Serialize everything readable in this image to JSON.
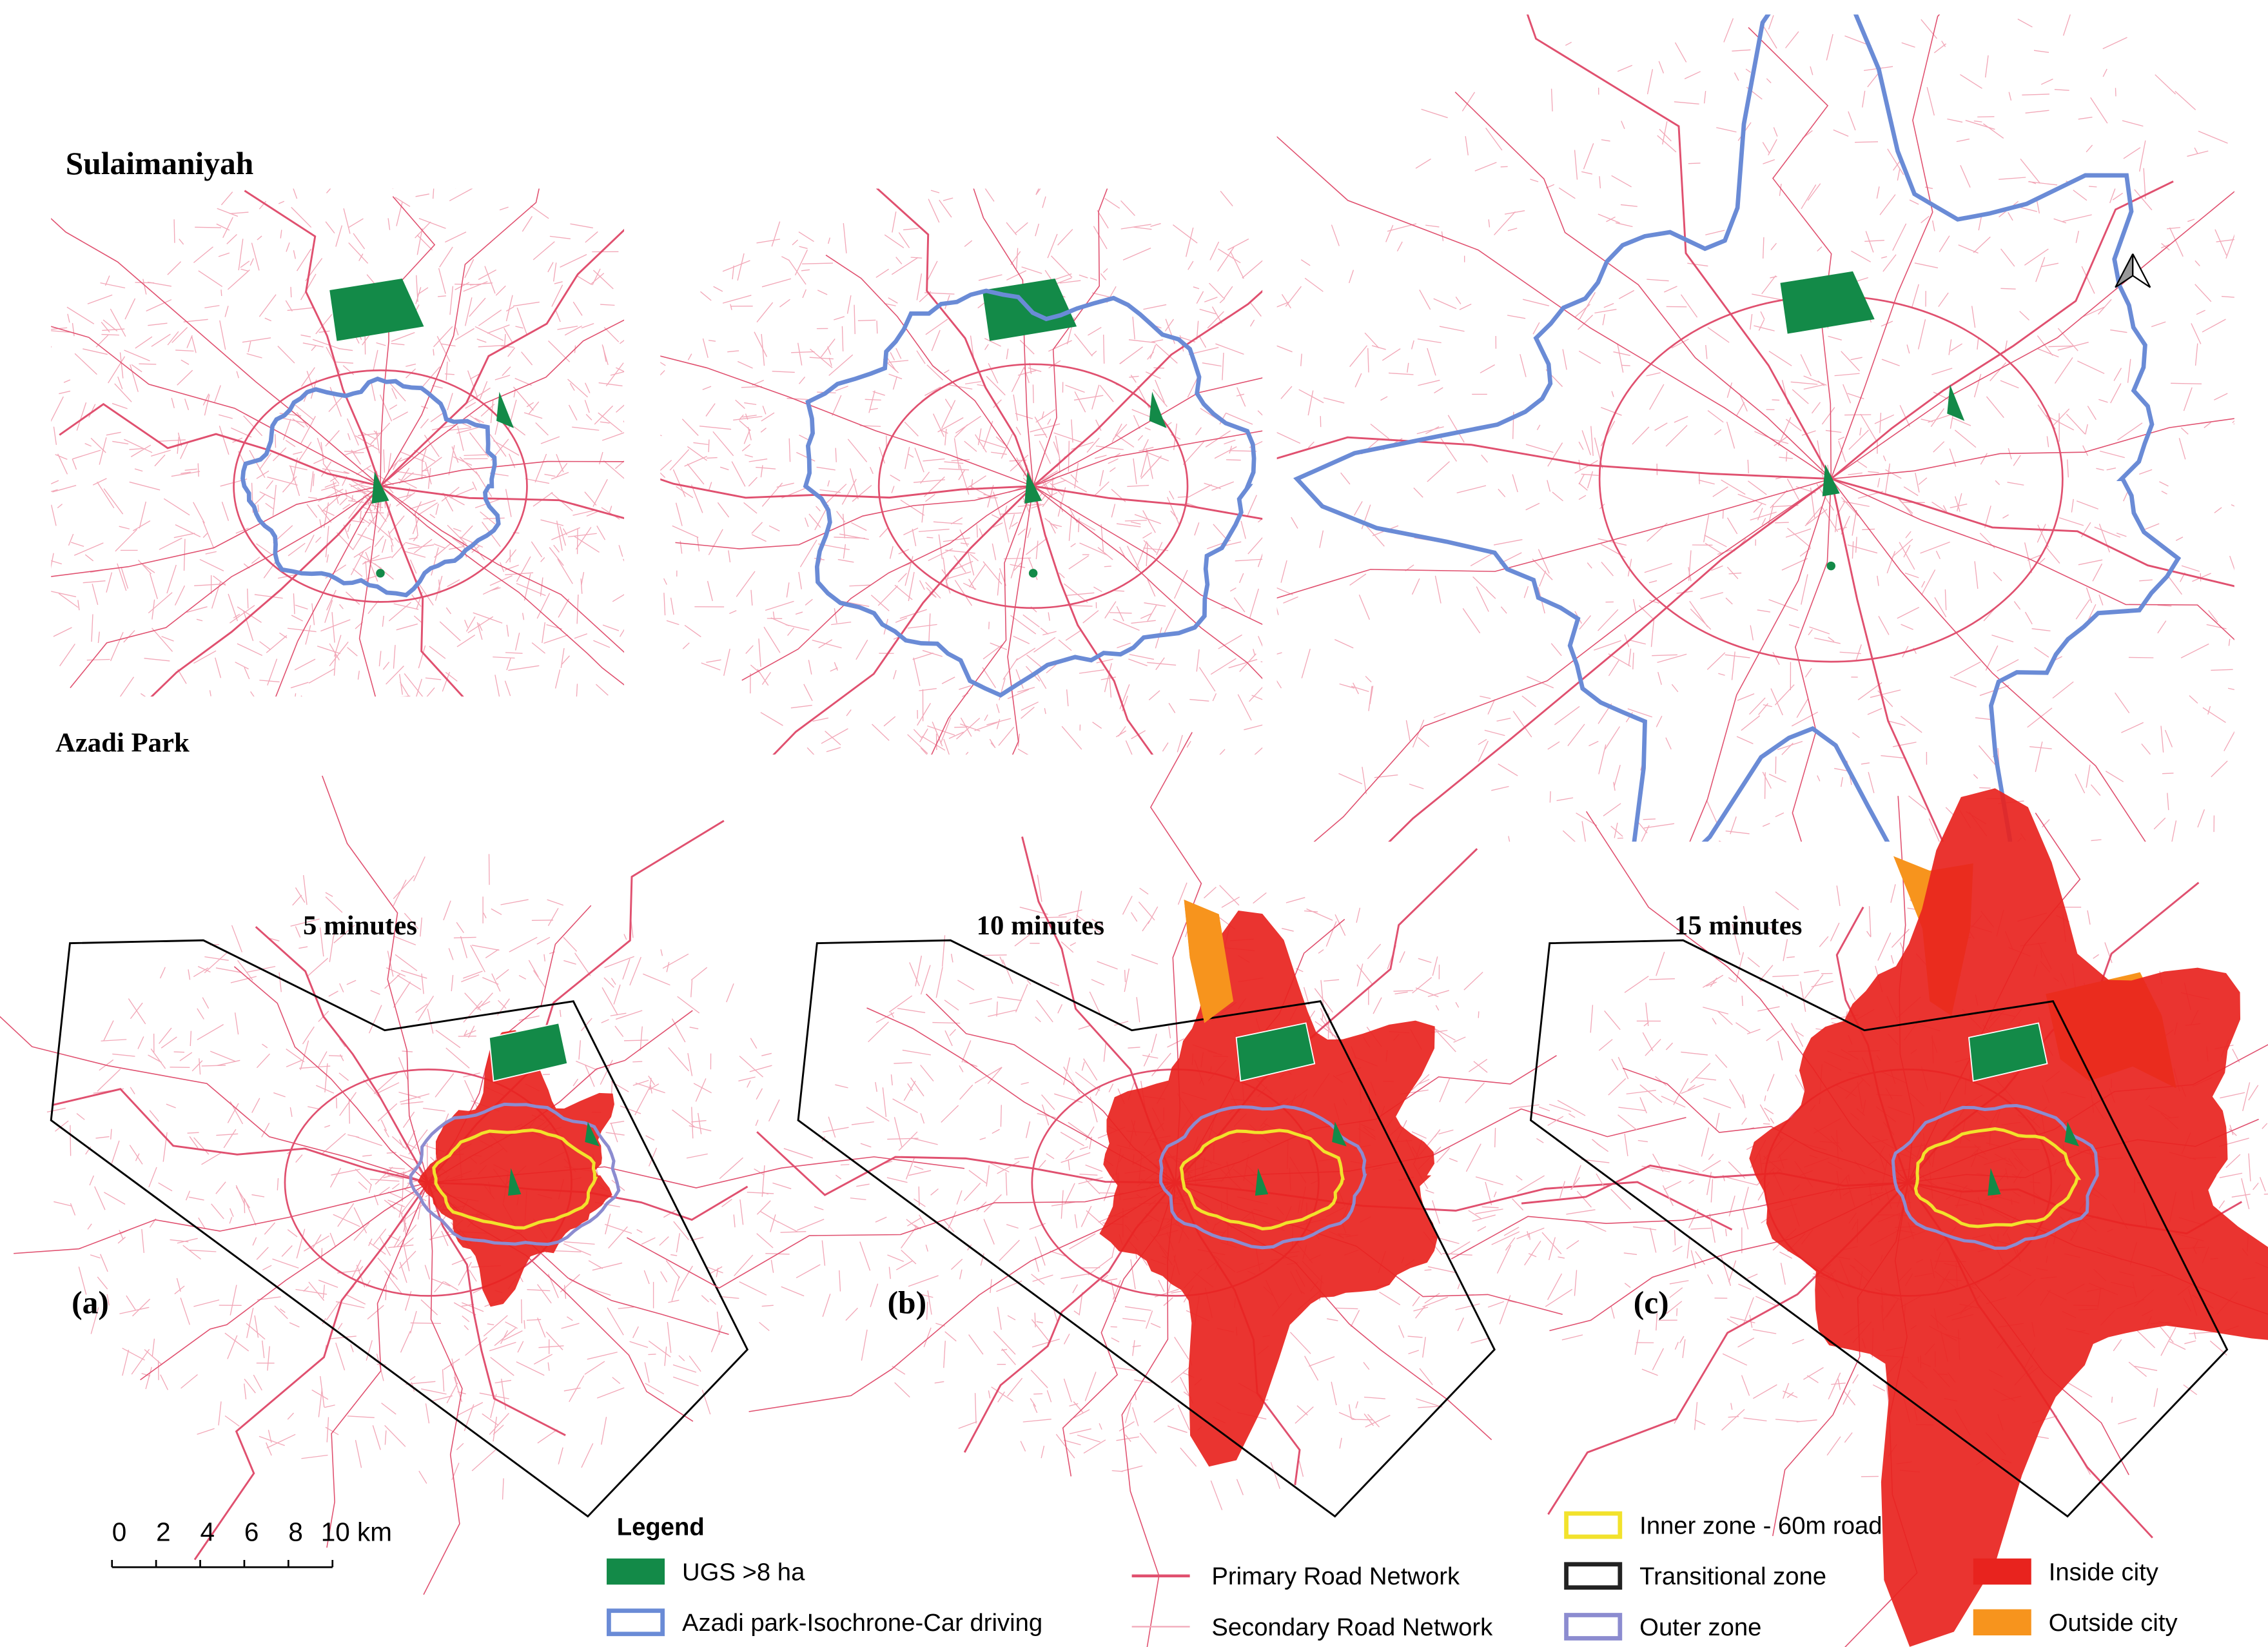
{
  "header": {
    "title": "Sulaimaniyah",
    "subtitle": "Azadi Park"
  },
  "panels": [
    {
      "label": "(a)",
      "time": "5 minutes"
    },
    {
      "label": "(b)",
      "time": "10 minutes"
    },
    {
      "label": "(c)",
      "time": "15 minutes"
    }
  ],
  "scale_bar": {
    "ticks": [
      "0",
      "2",
      "4",
      "6",
      "8",
      "10 km"
    ]
  },
  "legend": {
    "title": "Legend",
    "items": [
      {
        "label": "UGS >8 ha",
        "color": "#138a48"
      },
      {
        "label": "Azadi park-Isochrone-Car driving",
        "color": "#6a8bd6"
      },
      {
        "label": "Primary Road Network",
        "color": "#e0506f"
      },
      {
        "label": "Secondary Road Network",
        "color": "#f2a8b8"
      },
      {
        "label": "Inner zone - 60m road",
        "color": "#f2e22c"
      },
      {
        "label": "Transitional zone",
        "color": "#222222"
      },
      {
        "label": "Outer zone",
        "color": "#8c8cd0"
      },
      {
        "label": "Inside city",
        "color": "#e8231e"
      },
      {
        "label": "Outside city",
        "color": "#f7941d"
      }
    ]
  }
}
